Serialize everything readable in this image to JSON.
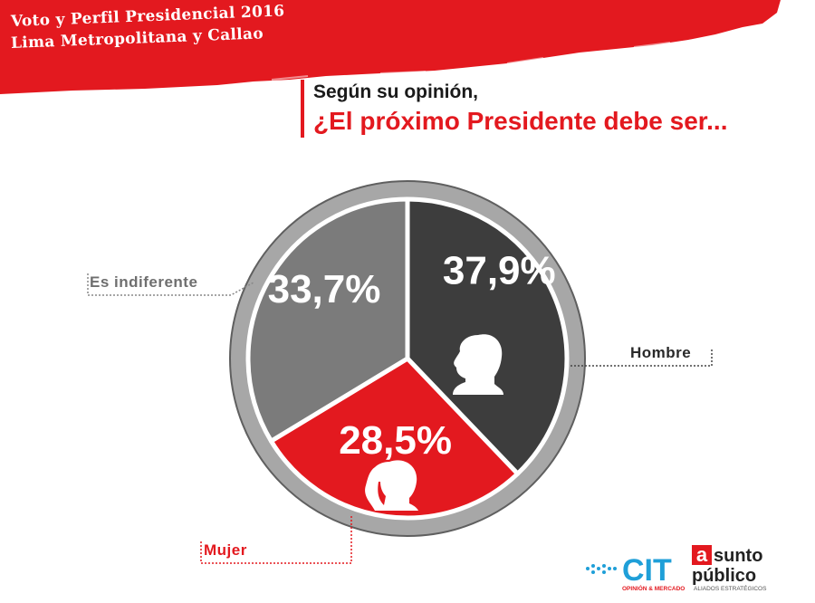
{
  "header": {
    "line1": "Voto y Perfil Presidencial 2016",
    "line2": "Lima Metropolitana y Callao"
  },
  "question": {
    "line1": "Según su opinión,",
    "line2": "¿El próximo Presidente debe ser..."
  },
  "colors": {
    "brand_red": "#e3191f",
    "hombre": "#3d3d3d",
    "mujer": "#e3191f",
    "indiferente": "#7b7b7b",
    "ring": "#a7a7a7"
  },
  "chart_data": {
    "type": "pie",
    "slices": [
      {
        "label": "Hombre",
        "value": 37.9,
        "display": "37,9%",
        "color": "#3d3d3d",
        "icon": "male-head-icon"
      },
      {
        "label": "Mujer",
        "value": 28.5,
        "display": "28,5%",
        "color": "#e3191f",
        "icon": "female-head-icon"
      },
      {
        "label": "Es indiferente",
        "value": 33.7,
        "display": "33,7%",
        "color": "#7b7b7b",
        "icon": ""
      }
    ]
  },
  "logos": {
    "cit": "CIT",
    "cit_sub": "OPINIÓN & MERCADO",
    "ap_a": "a",
    "ap_line1": "sunto",
    "ap_line2": "público",
    "ap_sub": "ALIADOS ESTRATÉGICOS"
  }
}
